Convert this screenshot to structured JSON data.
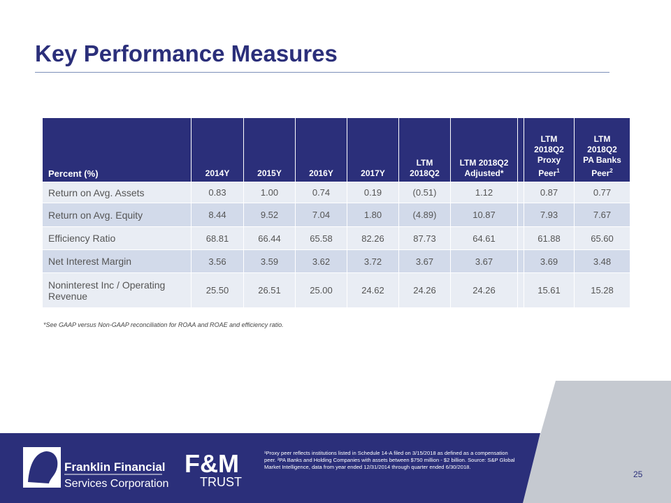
{
  "title": "Key Performance Measures",
  "table": {
    "header": [
      {
        "lines": [
          "Percent (%)"
        ]
      },
      {
        "lines": [
          "2014Y"
        ]
      },
      {
        "lines": [
          "2015Y"
        ]
      },
      {
        "lines": [
          "2016Y"
        ]
      },
      {
        "lines": [
          "2017Y"
        ]
      },
      {
        "lines": [
          "LTM",
          "2018Q2"
        ]
      },
      {
        "lines": [
          "LTM 2018Q2",
          "Adjusted*"
        ]
      },
      {
        "lines": [
          "LTM",
          "2018Q2",
          "Proxy",
          "Peer"
        ],
        "note": "1"
      },
      {
        "lines": [
          "LTM",
          "2018Q2",
          "PA Banks",
          "Peer"
        ],
        "note": "2"
      }
    ],
    "rows": [
      [
        "Return on Avg. Assets",
        "0.83",
        "1.00",
        "0.74",
        "0.19",
        "(0.51)",
        "1.12",
        "0.87",
        "0.77"
      ],
      [
        "Return on Avg. Equity",
        "8.44",
        "9.52",
        "7.04",
        "1.80",
        "(4.89)",
        "10.87",
        "7.93",
        "7.67"
      ],
      [
        "Efficiency Ratio",
        "68.81",
        "66.44",
        "65.58",
        "82.26",
        "87.73",
        "64.61",
        "61.88",
        "65.60"
      ],
      [
        "Net Interest  Margin",
        "3.56",
        "3.59",
        "3.62",
        "3.72",
        "3.67",
        "3.67",
        "3.69",
        "3.48"
      ],
      [
        "Noninterest Inc / Operating Revenue",
        "25.50",
        "26.51",
        "25.00",
        "24.62",
        "24.26",
        "24.26",
        "15.61",
        "15.28"
      ]
    ]
  },
  "footnote": "*See GAAP versus Non-GAAP reconciliation for ROAA and ROAE and efficiency ratio.",
  "footer": {
    "company_line1": "Franklin Financial",
    "company_line2": "Services Corporation",
    "brand_line1": "F&M",
    "brand_line2": "TRUST",
    "note": "¹Proxy peer reflects institutions listed in Schedule 14-A filed on 3/15/2018 as defined as a compensation peer. ²PA Banks and Holding Companies with assets between $750 million - $2 billion. Source: S&P Global Market Intelligence, data from year ended 12/31/2014 through quarter ended 6/30/2018.",
    "page_number": "25"
  }
}
